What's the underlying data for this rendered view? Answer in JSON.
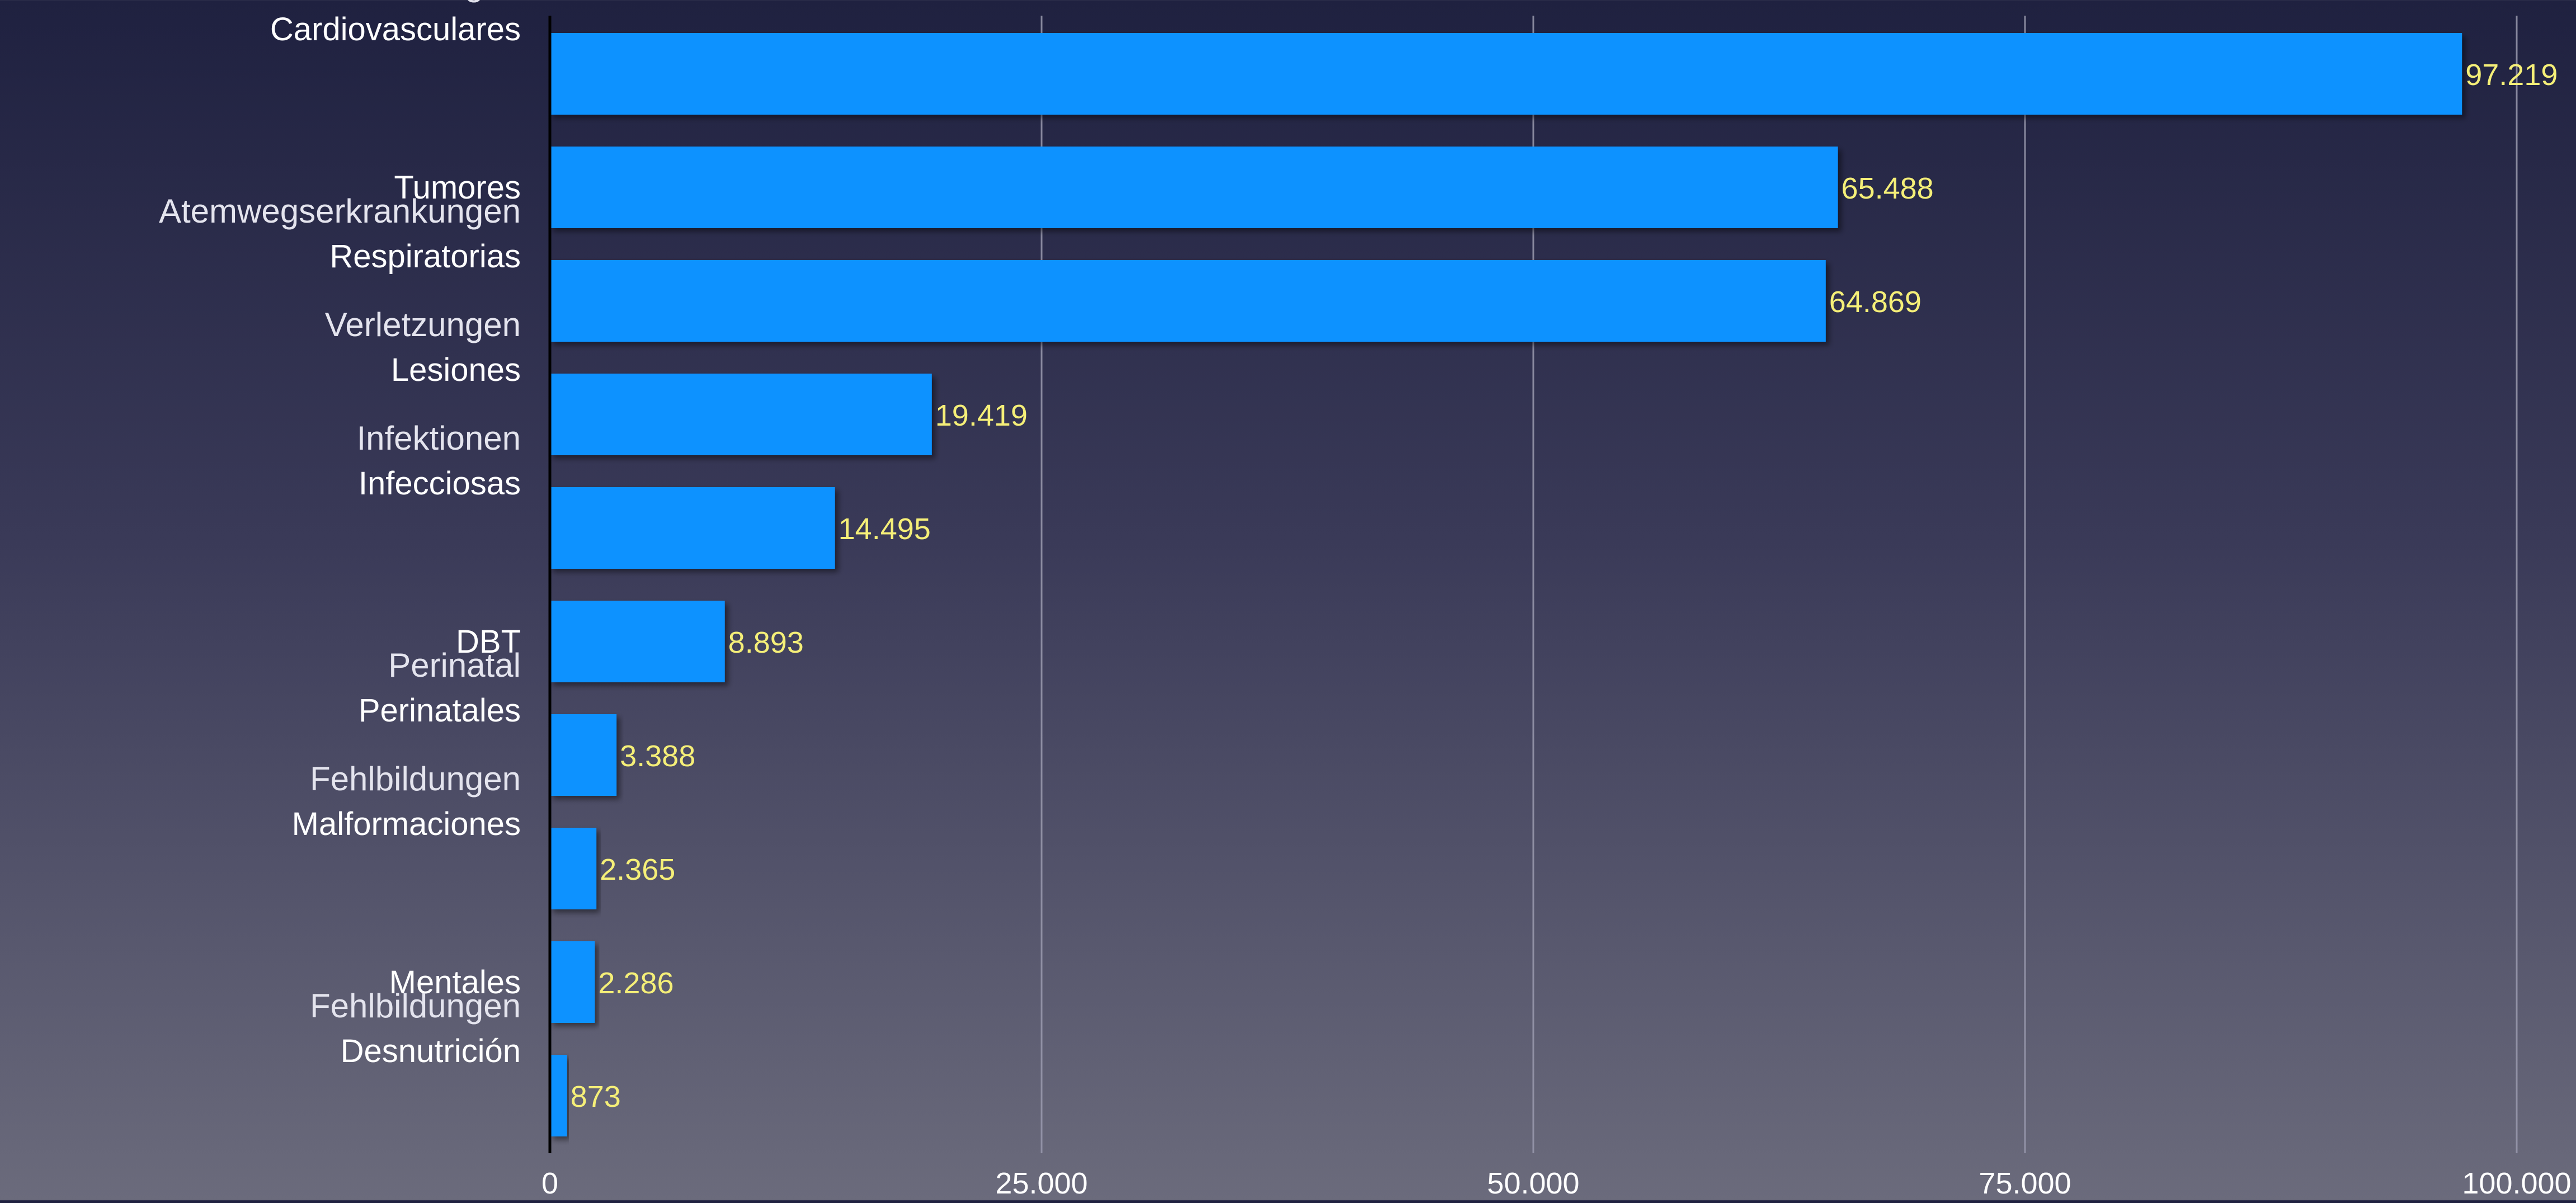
{
  "chart_data": {
    "type": "bar",
    "orientation": "horizontal",
    "categories": [
      {
        "label": "Cardiovasculares",
        "sublabel": "kardiovaskuläre Erkrankungen"
      },
      {
        "label": "Tumores",
        "sublabel": ""
      },
      {
        "label": "Respiratorias",
        "sublabel": "Atemwegserkrankungen"
      },
      {
        "label": "Lesiones",
        "sublabel": "Verletzungen"
      },
      {
        "label": "Infecciosas",
        "sublabel": "Infektionen"
      },
      {
        "label": "DBT",
        "sublabel": ""
      },
      {
        "label": "Perinatales",
        "sublabel": "Perinatal"
      },
      {
        "label": "Malformaciones",
        "sublabel": "Fehlbildungen"
      },
      {
        "label": "Mentales",
        "sublabel": ""
      },
      {
        "label": "Desnutrición",
        "sublabel": "Fehlbildungen"
      }
    ],
    "values": [
      97219,
      65488,
      64869,
      19419,
      14495,
      8893,
      3388,
      2365,
      2286,
      873
    ],
    "value_labels": [
      "97.219",
      "65.488",
      "64.869",
      "19.419",
      "14.495",
      "8.893",
      "3.388",
      "2.365",
      "2.286",
      "873"
    ],
    "xlim": [
      0,
      100000
    ],
    "xticks": [
      0,
      25000,
      50000,
      75000,
      100000
    ],
    "xtick_labels": [
      "0",
      "25.000",
      "50.000",
      "75.000",
      "100.000"
    ],
    "grid": "vertical",
    "legend": "none",
    "colors": {
      "bar": "#0892ff",
      "value_label": "#f5ef78",
      "category_label": "#ffffff",
      "sublabel": "#e4e4ee",
      "grid": "#9a9aae",
      "axis": "#000000",
      "tick_label": "#ffffff"
    }
  }
}
